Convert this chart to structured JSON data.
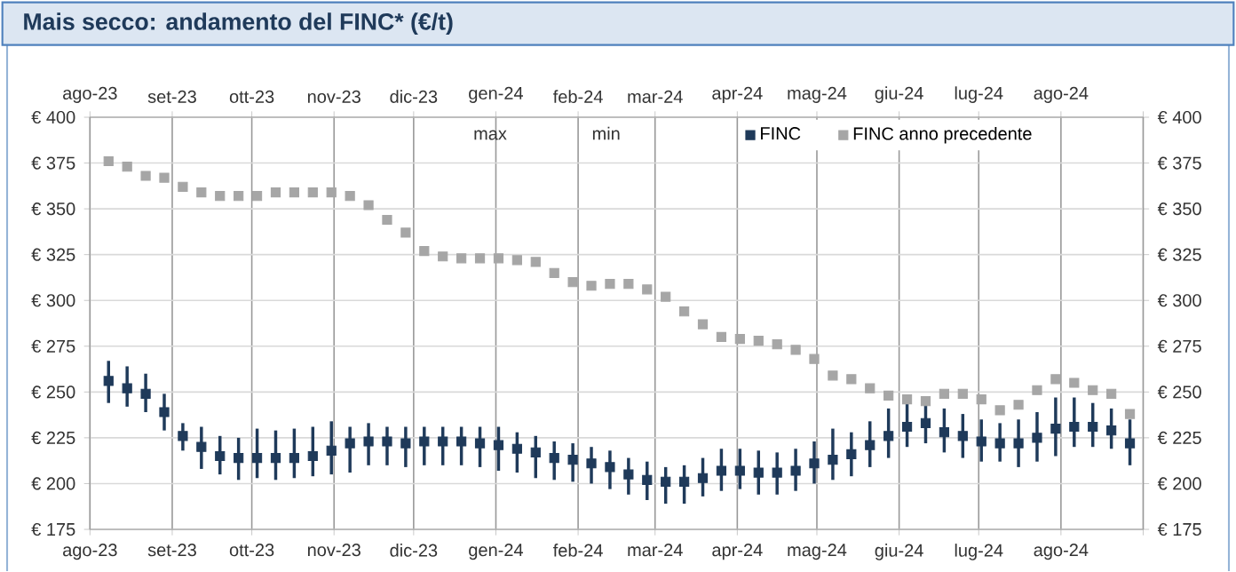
{
  "chart_data": {
    "type": "scatter",
    "title": "Mais secco: andamento del FINC* (€/t)",
    "x": [
      "2023-08-08",
      "2023-08-15",
      "2023-08-22",
      "2023-08-29",
      "2023-09-05",
      "2023-09-12",
      "2023-09-19",
      "2023-09-26",
      "2023-10-03",
      "2023-10-10",
      "2023-10-17",
      "2023-10-24",
      "2023-10-31",
      "2023-11-07",
      "2023-11-14",
      "2023-11-21",
      "2023-11-28",
      "2023-12-05",
      "2023-12-12",
      "2023-12-19",
      "2023-12-26",
      "2024-01-02",
      "2024-01-09",
      "2024-01-16",
      "2024-01-23",
      "2024-01-30",
      "2024-02-06",
      "2024-02-13",
      "2024-02-20",
      "2024-02-27",
      "2024-03-05",
      "2024-03-12",
      "2024-03-19",
      "2024-03-26",
      "2024-04-02",
      "2024-04-09",
      "2024-04-16",
      "2024-04-23",
      "2024-04-30",
      "2024-05-07",
      "2024-05-14",
      "2024-05-21",
      "2024-05-28",
      "2024-06-04",
      "2024-06-11",
      "2024-06-18",
      "2024-06-25",
      "2024-07-02",
      "2024-07-09",
      "2024-07-16",
      "2024-07-23",
      "2024-07-30",
      "2024-08-06",
      "2024-08-13",
      "2024-08-20",
      "2024-08-27"
    ],
    "series": [
      {
        "name": "FINC",
        "marker": "square",
        "color": "#1f3a5a",
        "values": [
          256,
          252,
          249,
          239,
          226,
          220,
          215,
          214,
          214,
          214,
          214,
          215,
          218,
          222,
          223,
          223,
          222,
          223,
          223,
          223,
          222,
          221,
          219,
          217,
          214,
          213,
          211,
          209,
          205,
          202,
          201,
          201,
          203,
          207,
          207,
          206,
          206,
          207,
          211,
          213,
          216,
          221,
          226,
          231,
          233,
          228,
          226,
          223,
          222,
          222,
          225,
          230,
          231,
          231,
          229,
          222
        ],
        "errors": [
          [
            244,
            267
          ],
          [
            242,
            264
          ],
          [
            239,
            260
          ],
          [
            229,
            249
          ],
          [
            218,
            233
          ],
          [
            208,
            231
          ],
          [
            205,
            226
          ],
          [
            202,
            225
          ],
          [
            203,
            230
          ],
          [
            202,
            229
          ],
          [
            203,
            230
          ],
          [
            204,
            231
          ],
          [
            205,
            234
          ],
          [
            206,
            231
          ],
          [
            210,
            233
          ],
          [
            210,
            231
          ],
          [
            209,
            231
          ],
          [
            210,
            231
          ],
          [
            210,
            231
          ],
          [
            210,
            231
          ],
          [
            209,
            231
          ],
          [
            207,
            231
          ],
          [
            206,
            228
          ],
          [
            203,
            226
          ],
          [
            202,
            223
          ],
          [
            201,
            222
          ],
          [
            200,
            220
          ],
          [
            197,
            218
          ],
          [
            194,
            214
          ],
          [
            191,
            212
          ],
          [
            189,
            209
          ],
          [
            189,
            210
          ],
          [
            193,
            214
          ],
          [
            196,
            219
          ],
          [
            197,
            219
          ],
          [
            194,
            218
          ],
          [
            194,
            217
          ],
          [
            196,
            219
          ],
          [
            200,
            223
          ],
          [
            202,
            230
          ],
          [
            204,
            228
          ],
          [
            209,
            234
          ],
          [
            214,
            241
          ],
          [
            220,
            246
          ],
          [
            222,
            244
          ],
          [
            217,
            241
          ],
          [
            214,
            238
          ],
          [
            212,
            235
          ],
          [
            212,
            233
          ],
          [
            209,
            235
          ],
          [
            212,
            239
          ],
          [
            215,
            247
          ],
          [
            220,
            247
          ],
          [
            220,
            244
          ],
          [
            219,
            241
          ],
          [
            210,
            235
          ]
        ]
      },
      {
        "name": "FINC anno precedente",
        "marker": "square",
        "color": "#a6a6a6",
        "values": [
          376,
          373,
          368,
          367,
          362,
          359,
          357,
          357,
          357,
          359,
          359,
          359,
          359,
          357,
          352,
          344,
          337,
          327,
          324,
          323,
          323,
          323,
          322,
          321,
          315,
          310,
          308,
          309,
          309,
          306,
          302,
          294,
          287,
          280,
          279,
          278,
          276,
          273,
          268,
          259,
          257,
          252,
          248,
          246,
          245,
          249,
          249,
          246,
          240,
          243,
          251,
          257,
          255,
          251,
          249,
          238
        ]
      }
    ],
    "annotations": [
      "max",
      "min"
    ],
    "xlim": [
      "2023-08-01",
      "2024-09-01"
    ],
    "xticks": [
      {
        "value": "2023-08-01",
        "label": "ago-23"
      },
      {
        "value": "2023-09-01",
        "label": "set-23"
      },
      {
        "value": "2023-10-01",
        "label": "ott-23"
      },
      {
        "value": "2023-11-01",
        "label": "nov-23"
      },
      {
        "value": "2023-12-01",
        "label": "dic-23"
      },
      {
        "value": "2024-01-01",
        "label": "gen-24"
      },
      {
        "value": "2024-02-01",
        "label": "feb-24"
      },
      {
        "value": "2024-03-01",
        "label": "mar-24"
      },
      {
        "value": "2024-04-01",
        "label": "apr-24"
      },
      {
        "value": "2024-05-01",
        "label": "mag-24"
      },
      {
        "value": "2024-06-01",
        "label": "giu-24"
      },
      {
        "value": "2024-07-01",
        "label": "lug-24"
      },
      {
        "value": "2024-08-01",
        "label": "ago-24"
      },
      {
        "value": "2024-09-01",
        "label": null
      }
    ],
    "x2lim": [
      "2023-08-01",
      "2024-09-01"
    ],
    "x2ticks": [
      {
        "value": "2023-08-01",
        "label": "ago-23"
      },
      {
        "value": "2023-09-01",
        "label": "set-23"
      },
      {
        "value": "2023-10-01",
        "label": "ott-23"
      },
      {
        "value": "2023-11-01",
        "label": "nov-23"
      },
      {
        "value": "2023-12-01",
        "label": "dic-23"
      },
      {
        "value": "2024-01-01",
        "label": "gen-24"
      },
      {
        "value": "2024-02-01",
        "label": "feb-24"
      },
      {
        "value": "2024-03-01",
        "label": "mar-24"
      },
      {
        "value": "2024-04-01",
        "label": "apr-24"
      },
      {
        "value": "2024-05-01",
        "label": "mag-24"
      },
      {
        "value": "2024-06-01",
        "label": "giu-24"
      },
      {
        "value": "2024-07-01",
        "label": "lug-24"
      },
      {
        "value": "2024-08-01",
        "label": "ago-24"
      },
      {
        "value": "2024-09-01",
        "label": null
      }
    ],
    "ylim": [
      175,
      400
    ],
    "yticks": [
      {
        "value": 175,
        "label": "€ 175"
      },
      {
        "value": 200,
        "label": "€ 200"
      },
      {
        "value": 225,
        "label": "€ 225"
      },
      {
        "value": 250,
        "label": "€ 250"
      },
      {
        "value": 275,
        "label": "€ 275"
      },
      {
        "value": 300,
        "label": "€ 300"
      },
      {
        "value": 325,
        "label": "€ 325"
      },
      {
        "value": 350,
        "label": "€ 350"
      },
      {
        "value": 375,
        "label": "€ 375"
      },
      {
        "value": 400,
        "label": "€ 400"
      }
    ],
    "y2lim": [
      175,
      400
    ],
    "y2ticks": [
      {
        "value": 175,
        "label": "€ 175"
      },
      {
        "value": 200,
        "label": "€ 200"
      },
      {
        "value": 225,
        "label": "€ 225"
      },
      {
        "value": 250,
        "label": "€ 250"
      },
      {
        "value": 275,
        "label": "€ 275"
      },
      {
        "value": 300,
        "label": "€ 300"
      },
      {
        "value": 325,
        "label": "€ 325"
      },
      {
        "value": 350,
        "label": "€ 350"
      },
      {
        "value": 375,
        "label": "€ 375"
      },
      {
        "value": 400,
        "label": "€ 400"
      }
    ],
    "grid": true,
    "legend": "top"
  }
}
